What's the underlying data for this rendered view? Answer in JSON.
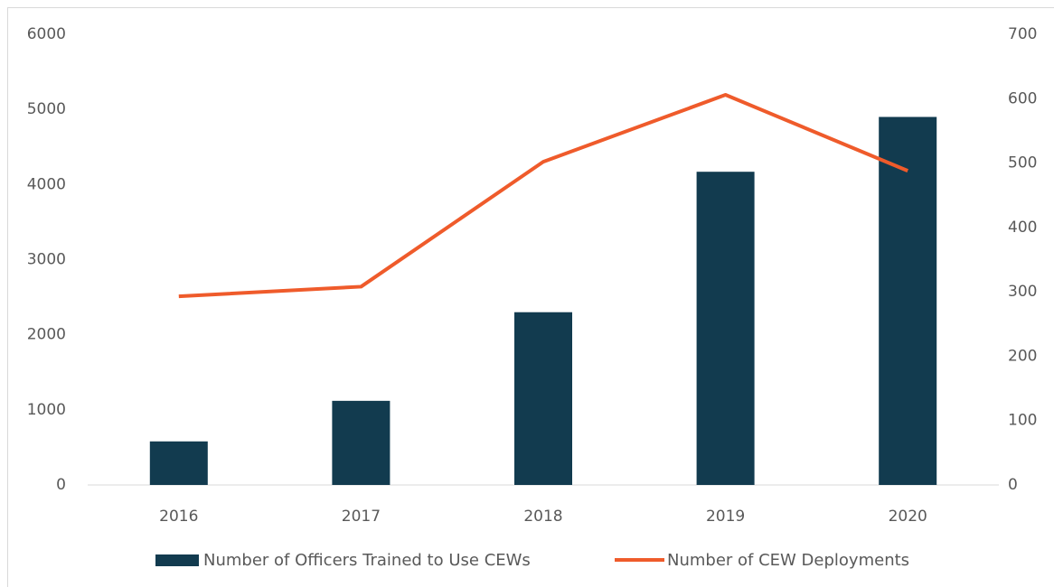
{
  "chart_data": {
    "type": "bar",
    "categories": [
      "2016",
      "2017",
      "2018",
      "2019",
      "2020"
    ],
    "series": [
      {
        "name": "Number of Officers Trained to Use CEWs",
        "type": "bar",
        "color": "#123b4f",
        "axis": "y",
        "values": [
          580,
          1120,
          2300,
          4170,
          4900
        ]
      },
      {
        "name": "Number of CEW Deployments",
        "type": "line",
        "color": "#ef5b2b",
        "axis": "y2",
        "values": [
          293,
          308,
          502,
          606,
          488
        ]
      }
    ],
    "ylim": [
      0,
      6000
    ],
    "yticks": [
      0,
      1000,
      2000,
      3000,
      4000,
      5000,
      6000
    ],
    "y2lim": [
      0,
      700
    ],
    "y2ticks": [
      0,
      100,
      200,
      300,
      400,
      500,
      600,
      700
    ],
    "legend": "bottom"
  }
}
